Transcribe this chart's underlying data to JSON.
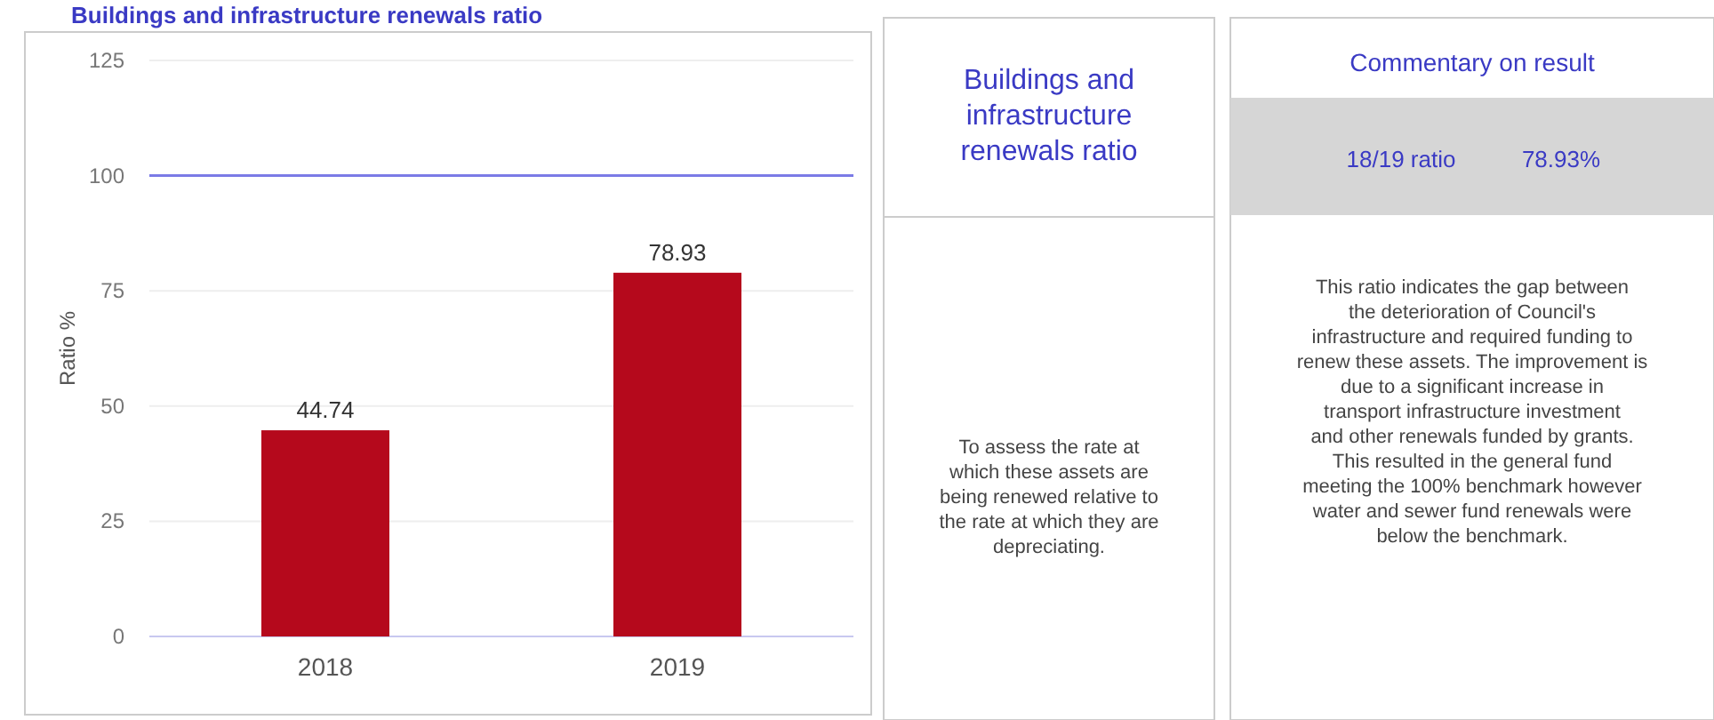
{
  "chart_data": [
    {
      "type": "bar",
      "title": "Buildings and infrastructure renewals ratio",
      "ylabel": "Ratio %",
      "categories": [
        "2018",
        "2019"
      ],
      "values": [
        44.74,
        78.93
      ],
      "color": "#b5091c",
      "ylim": [
        0,
        125
      ],
      "yticks": [
        0,
        25,
        50,
        75,
        100,
        125
      ],
      "grid": "y",
      "data_labels": true,
      "ref_lines": [
        {
          "axis": "y",
          "value": 100,
          "color": "#7b7be6"
        }
      ]
    },
    {
      "type": "other",
      "title": "Buildings and infrastructure renewals ratio",
      "annotations": [
        "To assess the rate at which these assets are being renewed relative to the rate at which they are depreciating."
      ]
    },
    {
      "type": "other",
      "title": "Commentary on result",
      "annotations": [
        "18/19 ratio",
        "78.93%",
        "This ratio indicates the gap between the deterioration of Council's infrastructure and required funding to renew these assets. The improvement is due to a significant increase in transport infrastructure investment and other renewals funded by grants. This resulted in the general fund meeting the 100% benchmark however water and sewer fund renewals were below the benchmark."
      ]
    }
  ]
}
